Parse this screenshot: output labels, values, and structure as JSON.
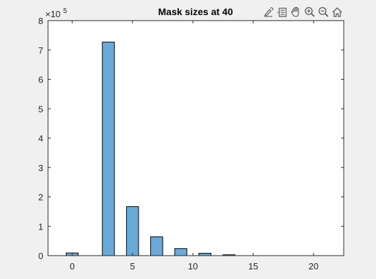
{
  "chart_data": {
    "type": "bar",
    "title": "Mask sizes at 40",
    "xlabel": "",
    "ylabel": "",
    "exponent_label_base": "×10",
    "exponent_label_power": "5",
    "xlim": [
      -2,
      22.5
    ],
    "ylim": [
      0,
      8
    ],
    "y_scale_factor": 100000,
    "x_ticks": [
      0,
      5,
      10,
      15,
      20
    ],
    "y_ticks": [
      0,
      1,
      2,
      3,
      4,
      5,
      6,
      7,
      8
    ],
    "bar_width": 1.0,
    "grid": false,
    "x": [
      0,
      3,
      5,
      7,
      9,
      11,
      13
    ],
    "values": [
      9000,
      727000,
      167000,
      64000,
      24000,
      8000,
      3000
    ],
    "bar_color": "#6aa9d8",
    "edge_color": "#000000"
  },
  "toolbar": {
    "buttons": [
      {
        "name": "brush-icon"
      },
      {
        "name": "datatip-icon"
      },
      {
        "name": "pan-icon"
      },
      {
        "name": "zoom-in-icon"
      },
      {
        "name": "zoom-out-icon"
      },
      {
        "name": "home-icon"
      }
    ]
  },
  "colors": {
    "figure_bg": "#f0f0f0",
    "axes_bg": "#ffffff",
    "axis": "#262626"
  }
}
